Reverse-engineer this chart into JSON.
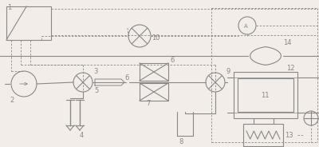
{
  "bg_color": "#f2ede8",
  "line_color": "#888888",
  "figsize": [
    4.0,
    1.84
  ],
  "dpi": 100,
  "xlim": [
    0,
    400
  ],
  "ylim": [
    0,
    184
  ]
}
